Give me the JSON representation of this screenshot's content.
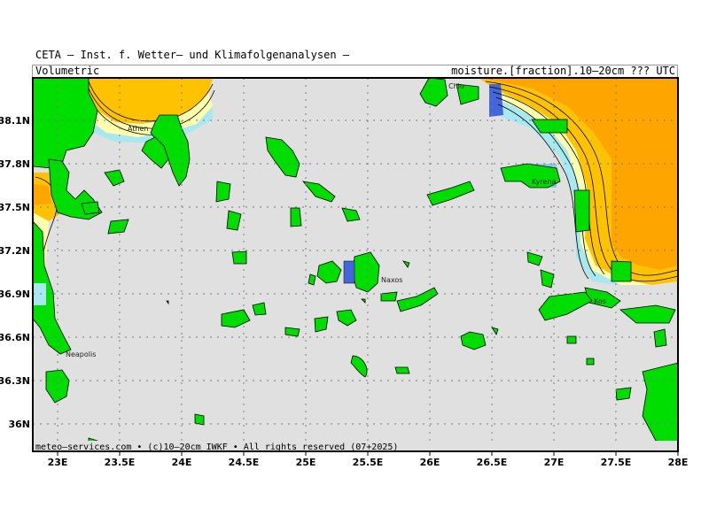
{
  "header": {
    "title": "CETA — Inst. f. Wetter— und Klimafolgenanalysen —",
    "left_label": "Volumetric",
    "right_label": "moisture.[fraction].10—20cm ??? UTC"
  },
  "footer": "meteo—services.com • (c)10—20cm IWKF • All rights reserved (07+2025)",
  "axes": {
    "lon_ticks": [
      "23E",
      "23.5E",
      "24E",
      "24.5E",
      "25E",
      "25.5E",
      "26E",
      "26.5E",
      "27E",
      "27.5E",
      "28E"
    ],
    "lat_ticks": [
      "38.1N",
      "37.8N",
      "37.5N",
      "37.2N",
      "36.9N",
      "36.6N",
      "36.3N",
      "36N"
    ]
  },
  "places": [
    {
      "id": "athen",
      "label": "Athen"
    },
    {
      "id": "chios",
      "label": "Chio"
    },
    {
      "id": "kyrena",
      "label": "Kyrena"
    },
    {
      "id": "naxos",
      "label": "Naxos"
    },
    {
      "id": "kos",
      "label": "Kos"
    },
    {
      "id": "neapolis",
      "label": "Neapolis"
    }
  ],
  "colors": {
    "sea": "#e0e0e0",
    "land": "#00dd00",
    "high_moisture": "#ffa500",
    "medium": "#ffc200",
    "pale": "#ffffb0",
    "cyan": "#a8e8f0",
    "blue": "#4466dd"
  }
}
